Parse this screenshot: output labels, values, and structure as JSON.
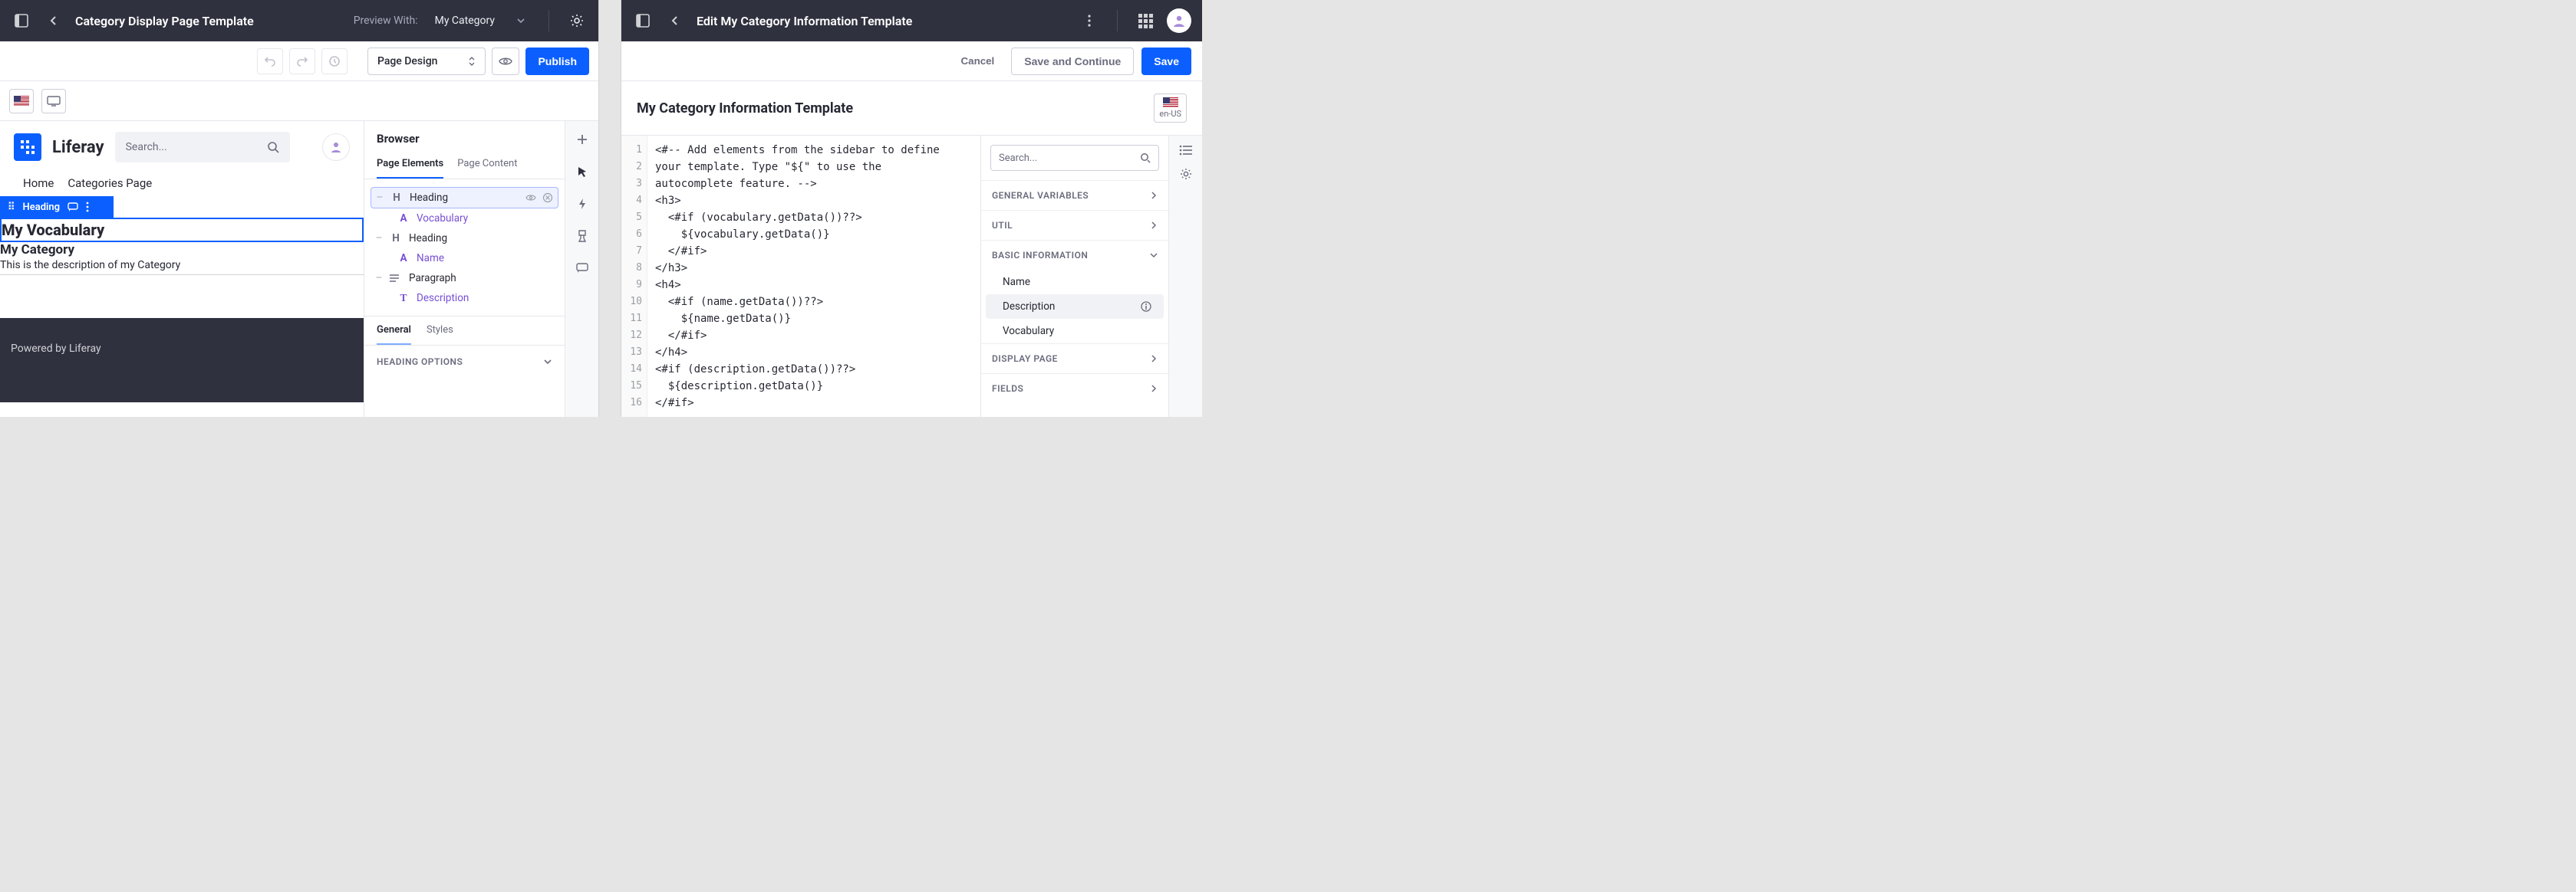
{
  "left": {
    "topbar": {
      "title": "Category Display Page Template",
      "preview_label": "Preview With:",
      "preview_value": "My Category"
    },
    "subbar": {
      "mode": "Page Design",
      "publish": "Publish"
    },
    "canvas": {
      "brand": "Liferay",
      "search_placeholder": "Search...",
      "nav": {
        "home": "Home",
        "categories": "Categories Page"
      },
      "selection_label": "Heading",
      "vocab_heading": "My Vocabulary",
      "category_heading": "My Category",
      "description": "This is the description of my Category",
      "footer": "Powered by Liferay"
    },
    "browser": {
      "title": "Browser",
      "tabs": {
        "elements": "Page Elements",
        "content": "Page Content"
      },
      "tree": {
        "heading1": "Heading",
        "vocabulary": "Vocabulary",
        "heading2": "Heading",
        "name": "Name",
        "paragraph": "Paragraph",
        "description": "Description"
      },
      "subtabs": {
        "general": "General",
        "styles": "Styles"
      },
      "section": "HEADING OPTIONS"
    }
  },
  "right": {
    "topbar": {
      "title": "Edit My Category Information Template"
    },
    "actions": {
      "cancel": "Cancel",
      "save_continue": "Save and Continue",
      "save": "Save"
    },
    "template_title": "My Category Information Template",
    "locale": "en-US",
    "code_lines": [
      "<#-- Add elements from the sidebar to define",
      "your template. Type \"${\" to use the",
      "autocomplete feature. -->",
      "<h3>",
      "  <#if (vocabulary.getData())??>",
      "    ${vocabulary.getData()}",
      "  </#if>",
      "</h3>",
      "<h4>",
      "  <#if (name.getData())??>",
      "    ${name.getData()}",
      "  </#if>",
      "</h4>",
      "<#if (description.getData())??>",
      "  ${description.getData()}",
      "</#if>"
    ],
    "vars": {
      "search_placeholder": "Search...",
      "sections": {
        "general": "GENERAL VARIABLES",
        "util": "UTIL",
        "basic": "BASIC INFORMATION",
        "display": "DISPLAY PAGE",
        "fields": "FIELDS"
      },
      "items": {
        "name": "Name",
        "description": "Description",
        "vocabulary": "Vocabulary"
      }
    }
  }
}
